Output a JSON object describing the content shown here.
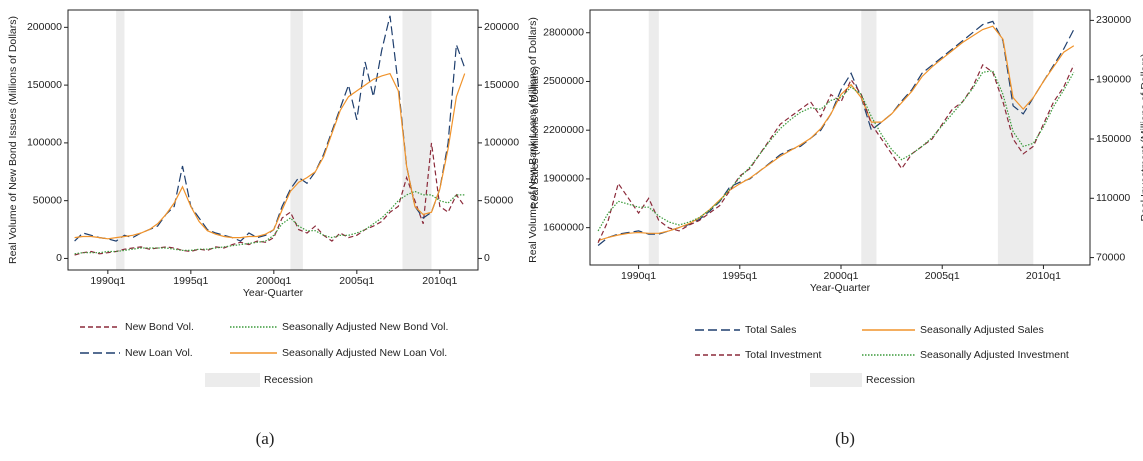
{
  "chart_data": [
    {
      "type": "line",
      "ylabel": "Real Volume of New Bond Issues (Millions of Dollars)",
      "y2label": "Real Volume of New Bank Loans (Millions of Dollars)",
      "xlabel": "Year-Quarter",
      "caption": "(a)",
      "xlim": [
        1987.6,
        2012.3
      ],
      "xticks": [
        {
          "value": 1990,
          "label": "1990q1"
        },
        {
          "value": 1995,
          "label": "1995q1"
        },
        {
          "value": 2000,
          "label": "2000q1"
        },
        {
          "value": 2005,
          "label": "2005q1"
        },
        {
          "value": 2010,
          "label": "2010q1"
        }
      ],
      "ylim": [
        -10000,
        215000
      ],
      "yticks": [
        0,
        50000,
        100000,
        150000,
        200000
      ],
      "y2lim": [
        -10000,
        215000
      ],
      "y2ticks": [
        0,
        50000,
        100000,
        150000,
        200000
      ],
      "recessions": [
        [
          1990.5,
          1991.0
        ],
        [
          2001.0,
          2001.75
        ],
        [
          2007.75,
          2009.5
        ]
      ],
      "recession_label": "Recession",
      "recession_color": "#ececec",
      "x": [
        1988,
        1988.5,
        1989,
        1989.5,
        1990,
        1990.5,
        1991,
        1991.5,
        1992,
        1992.5,
        1993,
        1993.5,
        1994,
        1994.5,
        1995,
        1995.5,
        1996,
        1996.5,
        1997,
        1997.5,
        1998,
        1998.5,
        1999,
        1999.5,
        2000,
        2000.5,
        2001,
        2001.5,
        2002,
        2002.5,
        2003,
        2003.5,
        2004,
        2004.5,
        2005,
        2005.5,
        2006,
        2006.5,
        2007,
        2007.5,
        2008,
        2008.5,
        2009,
        2009.5,
        2010,
        2010.5,
        2011,
        2011.5
      ],
      "series": [
        {
          "name": "New Bond Vol.",
          "color": "#8b2a3a",
          "dash": "dashed",
          "values": [
            3000,
            5000,
            6000,
            4000,
            5000,
            6000,
            8000,
            9000,
            10000,
            8000,
            9000,
            10000,
            9000,
            7000,
            6000,
            8000,
            7000,
            10000,
            9000,
            12000,
            14000,
            12000,
            15000,
            14000,
            18000,
            35000,
            40000,
            25000,
            22000,
            28000,
            20000,
            15000,
            22000,
            18000,
            20000,
            25000,
            28000,
            32000,
            40000,
            45000,
            70000,
            50000,
            30000,
            100000,
            45000,
            40000,
            55000,
            45000
          ]
        },
        {
          "name": "Seasonally Adjusted New Bond Vol.",
          "color": "#3a9a3a",
          "dash": "dotted",
          "values": [
            4000,
            5000,
            5000,
            5000,
            6000,
            6000,
            7000,
            8000,
            9000,
            9000,
            9000,
            9000,
            8000,
            7000,
            7000,
            8000,
            8000,
            9000,
            10000,
            11000,
            12000,
            13000,
            14000,
            15000,
            20000,
            30000,
            35000,
            28000,
            24000,
            24000,
            20000,
            18000,
            20000,
            20000,
            22000,
            25000,
            30000,
            35000,
            42000,
            50000,
            55000,
            58000,
            55000,
            55000,
            50000,
            48000,
            55000,
            55000
          ]
        },
        {
          "name": "New Loan Vol.",
          "color": "#1f3f6e",
          "dash": "longdash",
          "axis": "y2",
          "values": [
            15000,
            22000,
            20000,
            18000,
            17000,
            15000,
            20000,
            18000,
            22000,
            25000,
            28000,
            38000,
            45000,
            80000,
            45000,
            35000,
            25000,
            22000,
            20000,
            18000,
            15000,
            22000,
            18000,
            20000,
            25000,
            45000,
            60000,
            70000,
            65000,
            75000,
            90000,
            110000,
            130000,
            150000,
            120000,
            170000,
            140000,
            180000,
            210000,
            150000,
            80000,
            45000,
            35000,
            40000,
            60000,
            100000,
            185000,
            165000
          ]
        },
        {
          "name": "Seasonally Adjusted New Loan Vol.",
          "color": "#f0932b",
          "dash": "solid",
          "axis": "y2",
          "values": [
            18000,
            19000,
            19000,
            18000,
            17000,
            18000,
            19000,
            20000,
            22000,
            25000,
            30000,
            38000,
            48000,
            62000,
            45000,
            32000,
            24000,
            21000,
            19000,
            18000,
            18000,
            19000,
            19000,
            21000,
            25000,
            42000,
            58000,
            66000,
            70000,
            75000,
            88000,
            108000,
            128000,
            140000,
            145000,
            150000,
            155000,
            158000,
            160000,
            145000,
            80000,
            45000,
            38000,
            40000,
            60000,
            95000,
            140000,
            160000
          ]
        }
      ]
    },
    {
      "type": "line",
      "ylabel": "Real Sales (Millions of Dollars)",
      "y2label": "Real Investment (Millions of Dollars)",
      "xlabel": "Year-Quarter",
      "caption": "(b)",
      "xlim": [
        1987.6,
        2012.3
      ],
      "xticks": [
        {
          "value": 1990,
          "label": "1990q1"
        },
        {
          "value": 1995,
          "label": "1995q1"
        },
        {
          "value": 2000,
          "label": "2000q1"
        },
        {
          "value": 2005,
          "label": "2005q1"
        },
        {
          "value": 2010,
          "label": "2010q1"
        }
      ],
      "ylim": [
        1370000,
        2940000
      ],
      "yticks": [
        1600000,
        1900000,
        2200000,
        2500000,
        2800000
      ],
      "y2lim": [
        65000,
        237000
      ],
      "y2ticks": [
        70000,
        110000,
        150000,
        190000,
        230000
      ],
      "recessions": [
        [
          1990.5,
          1991.0
        ],
        [
          2001.0,
          2001.75
        ],
        [
          2007.75,
          2009.5
        ]
      ],
      "recession_label": "Recession",
      "recession_color": "#ececec",
      "x": [
        1988,
        1988.5,
        1989,
        1989.5,
        1990,
        1990.5,
        1991,
        1991.5,
        1992,
        1992.5,
        1993,
        1993.5,
        1994,
        1994.5,
        1995,
        1995.5,
        1996,
        1996.5,
        1997,
        1997.5,
        1998,
        1998.5,
        1999,
        1999.5,
        2000,
        2000.5,
        2001,
        2001.5,
        2002,
        2002.5,
        2003,
        2003.5,
        2004,
        2004.5,
        2005,
        2005.5,
        2006,
        2006.5,
        2007,
        2007.5,
        2008,
        2008.5,
        2009,
        2009.5,
        2010,
        2010.5,
        2011,
        2011.5
      ],
      "series": [
        {
          "name": "Total Sales",
          "color": "#1f3f6e",
          "dash": "longdash",
          "values": [
            1490000,
            1540000,
            1560000,
            1570000,
            1580000,
            1560000,
            1560000,
            1580000,
            1600000,
            1620000,
            1650000,
            1700000,
            1760000,
            1850000,
            1880000,
            1900000,
            1950000,
            2000000,
            2050000,
            2080000,
            2100000,
            2150000,
            2200000,
            2300000,
            2450000,
            2550000,
            2400000,
            2200000,
            2250000,
            2300000,
            2380000,
            2450000,
            2550000,
            2600000,
            2650000,
            2700000,
            2750000,
            2800000,
            2850000,
            2870000,
            2750000,
            2350000,
            2300000,
            2400000,
            2500000,
            2600000,
            2700000,
            2820000
          ]
        },
        {
          "name": "Seasonally Adjusted Sales",
          "color": "#f0932b",
          "dash": "solid",
          "values": [
            1520000,
            1540000,
            1555000,
            1565000,
            1570000,
            1565000,
            1565000,
            1580000,
            1600000,
            1625000,
            1660000,
            1710000,
            1770000,
            1830000,
            1870000,
            1905000,
            1950000,
            1995000,
            2040000,
            2075000,
            2110000,
            2150000,
            2210000,
            2300000,
            2420000,
            2480000,
            2400000,
            2250000,
            2250000,
            2300000,
            2370000,
            2440000,
            2530000,
            2590000,
            2640000,
            2690000,
            2740000,
            2780000,
            2820000,
            2840000,
            2760000,
            2400000,
            2330000,
            2400000,
            2500000,
            2590000,
            2680000,
            2720000
          ]
        },
        {
          "name": "Total Investment",
          "color": "#8b2a3a",
          "dash": "dashed",
          "axis": "y2",
          "values": [
            80000,
            95000,
            120000,
            110000,
            100000,
            110000,
            95000,
            90000,
            88000,
            92000,
            95000,
            100000,
            105000,
            115000,
            125000,
            130000,
            140000,
            150000,
            160000,
            165000,
            170000,
            175000,
            165000,
            180000,
            175000,
            190000,
            180000,
            160000,
            150000,
            140000,
            130000,
            140000,
            145000,
            150000,
            160000,
            170000,
            175000,
            185000,
            200000,
            195000,
            175000,
            150000,
            140000,
            145000,
            160000,
            175000,
            185000,
            200000
          ]
        },
        {
          "name": "Seasonally Adjusted Investment",
          "color": "#3a9a3a",
          "dash": "dotted",
          "axis": "y2",
          "values": [
            88000,
            100000,
            108000,
            106000,
            104000,
            104000,
            98000,
            94000,
            92000,
            94000,
            97000,
            102000,
            108000,
            116000,
            124000,
            131000,
            140000,
            149000,
            157000,
            163000,
            168000,
            171000,
            170000,
            176000,
            178000,
            185000,
            180000,
            165000,
            153000,
            143000,
            136000,
            140000,
            145000,
            151000,
            159000,
            167000,
            175000,
            184000,
            195000,
            196000,
            180000,
            155000,
            145000,
            147000,
            158000,
            172000,
            183000,
            195000
          ]
        }
      ]
    }
  ]
}
